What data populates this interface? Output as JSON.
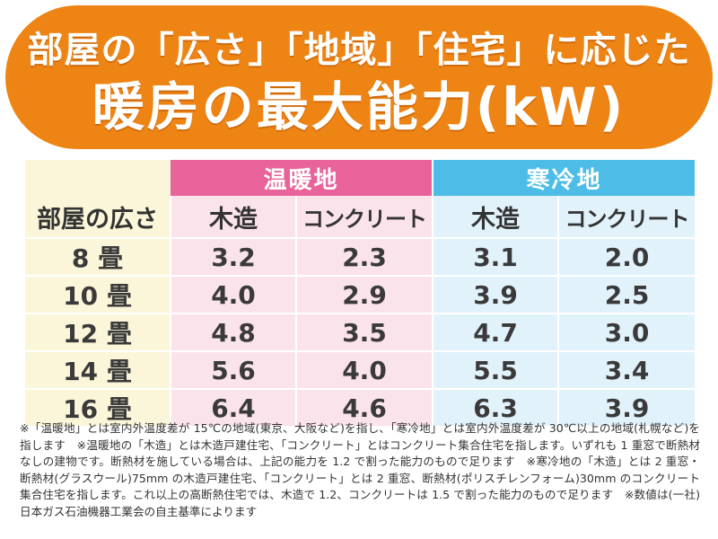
{
  "title": {
    "line1": "部屋の「広さ」「地域」「住宅」に応じた",
    "line2": "暖房の最大能力(kW)"
  },
  "table": {
    "group_warm": "温暖地",
    "group_cold": "寒冷地",
    "room_header": "部屋の広さ",
    "col_wood": "木造",
    "col_concrete": "コンクリート",
    "rows": [
      {
        "room": "8 畳",
        "warm_wood": "3.2",
        "warm_concrete": "2.3",
        "cold_wood": "3.1",
        "cold_concrete": "2.0"
      },
      {
        "room": "10 畳",
        "warm_wood": "4.0",
        "warm_concrete": "2.9",
        "cold_wood": "3.9",
        "cold_concrete": "2.5"
      },
      {
        "room": "12 畳",
        "warm_wood": "4.8",
        "warm_concrete": "3.5",
        "cold_wood": "4.7",
        "cold_concrete": "3.0"
      },
      {
        "room": "14 畳",
        "warm_wood": "5.6",
        "warm_concrete": "4.0",
        "cold_wood": "5.5",
        "cold_concrete": "3.4"
      },
      {
        "room": "16 畳",
        "warm_wood": "6.4",
        "warm_concrete": "4.6",
        "cold_wood": "6.3",
        "cold_concrete": "3.9"
      }
    ]
  },
  "footnote": "※「温暖地」とは室内外温度差が 15℃の地域(東京、大阪など)を指し、「寒冷地」とは室内外温度差が 30℃以上の地域(札幌など)を指します　※温暖地の「木造」とは木造戸建住宅、「コンクリート」とはコンクリート集合住宅を指します。いずれも 1 重窓で断熱材なしの建物です。断熱材を施している場合は、上記の能力を 1.2 で割った能力のもので足ります　※寒冷地の「木造」とは 2 重窓・断熱材(グラスウール)75mm の木造戸建住宅、「コンクリート」とは 2 重窓、断熱材(ポリスチレンフォーム)30mm のコンクリート集合住宅を指します。これ以上の高断熱住宅では、木造で 1.2、コンクリートは 1.5 で割った能力のもので足ります　※数値は(一社)日本ガス石油機器工業会の自主基準によります",
  "colors": {
    "banner": "#ee8414",
    "warm_header": "#e8639a",
    "cold_header": "#4dbde7",
    "warm_cell": "#fbe3ec",
    "cold_cell": "#e1f2fb",
    "room_cell": "#fbf6d9"
  }
}
